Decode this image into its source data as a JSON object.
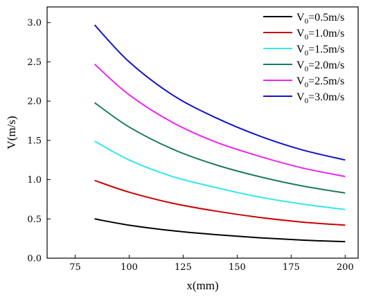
{
  "chart_data": {
    "type": "line",
    "xlabel": "x(mm)",
    "ylabel": "V(m/s)",
    "xlim": [
      62,
      206
    ],
    "ylim": [
      0.0,
      3.2
    ],
    "xticks": [
      "75",
      "100",
      "125",
      "150",
      "175",
      "200"
    ],
    "yticks": [
      "0.0",
      "0.5",
      "1.0",
      "1.5",
      "2.0",
      "2.5",
      "3.0"
    ],
    "x": [
      84,
      100,
      120,
      140,
      160,
      180,
      200
    ],
    "legend_position": "top-right",
    "grid": false,
    "series": [
      {
        "name_prefix": "V",
        "name_sub": "0",
        "name_suffix": "=0.5m/s",
        "color": "#000000",
        "values": [
          0.5,
          0.42,
          0.35,
          0.3,
          0.26,
          0.23,
          0.21
        ]
      },
      {
        "name_prefix": "V",
        "name_sub": "0",
        "name_suffix": "=1.0m/s",
        "color": "#cc0000",
        "values": [
          0.99,
          0.84,
          0.7,
          0.6,
          0.52,
          0.46,
          0.42
        ]
      },
      {
        "name_prefix": "V",
        "name_sub": "0",
        "name_suffix": "=1.5m/s",
        "color": "#33e8e8",
        "values": [
          1.49,
          1.25,
          1.04,
          0.9,
          0.78,
          0.69,
          0.62
        ]
      },
      {
        "name_prefix": "V",
        "name_sub": "0",
        "name_suffix": "=2.0m/s",
        "color": "#1a7a5e",
        "values": [
          1.98,
          1.67,
          1.39,
          1.19,
          1.04,
          0.92,
          0.83
        ]
      },
      {
        "name_prefix": "V",
        "name_sub": "0",
        "name_suffix": "=2.5m/s",
        "color": "#ee22ee",
        "values": [
          2.47,
          2.08,
          1.73,
          1.48,
          1.3,
          1.15,
          1.04
        ]
      },
      {
        "name_prefix": "V",
        "name_sub": "0",
        "name_suffix": "=3.0m/s",
        "color": "#1111cc",
        "values": [
          2.97,
          2.5,
          2.08,
          1.79,
          1.56,
          1.38,
          1.25
        ]
      }
    ]
  }
}
